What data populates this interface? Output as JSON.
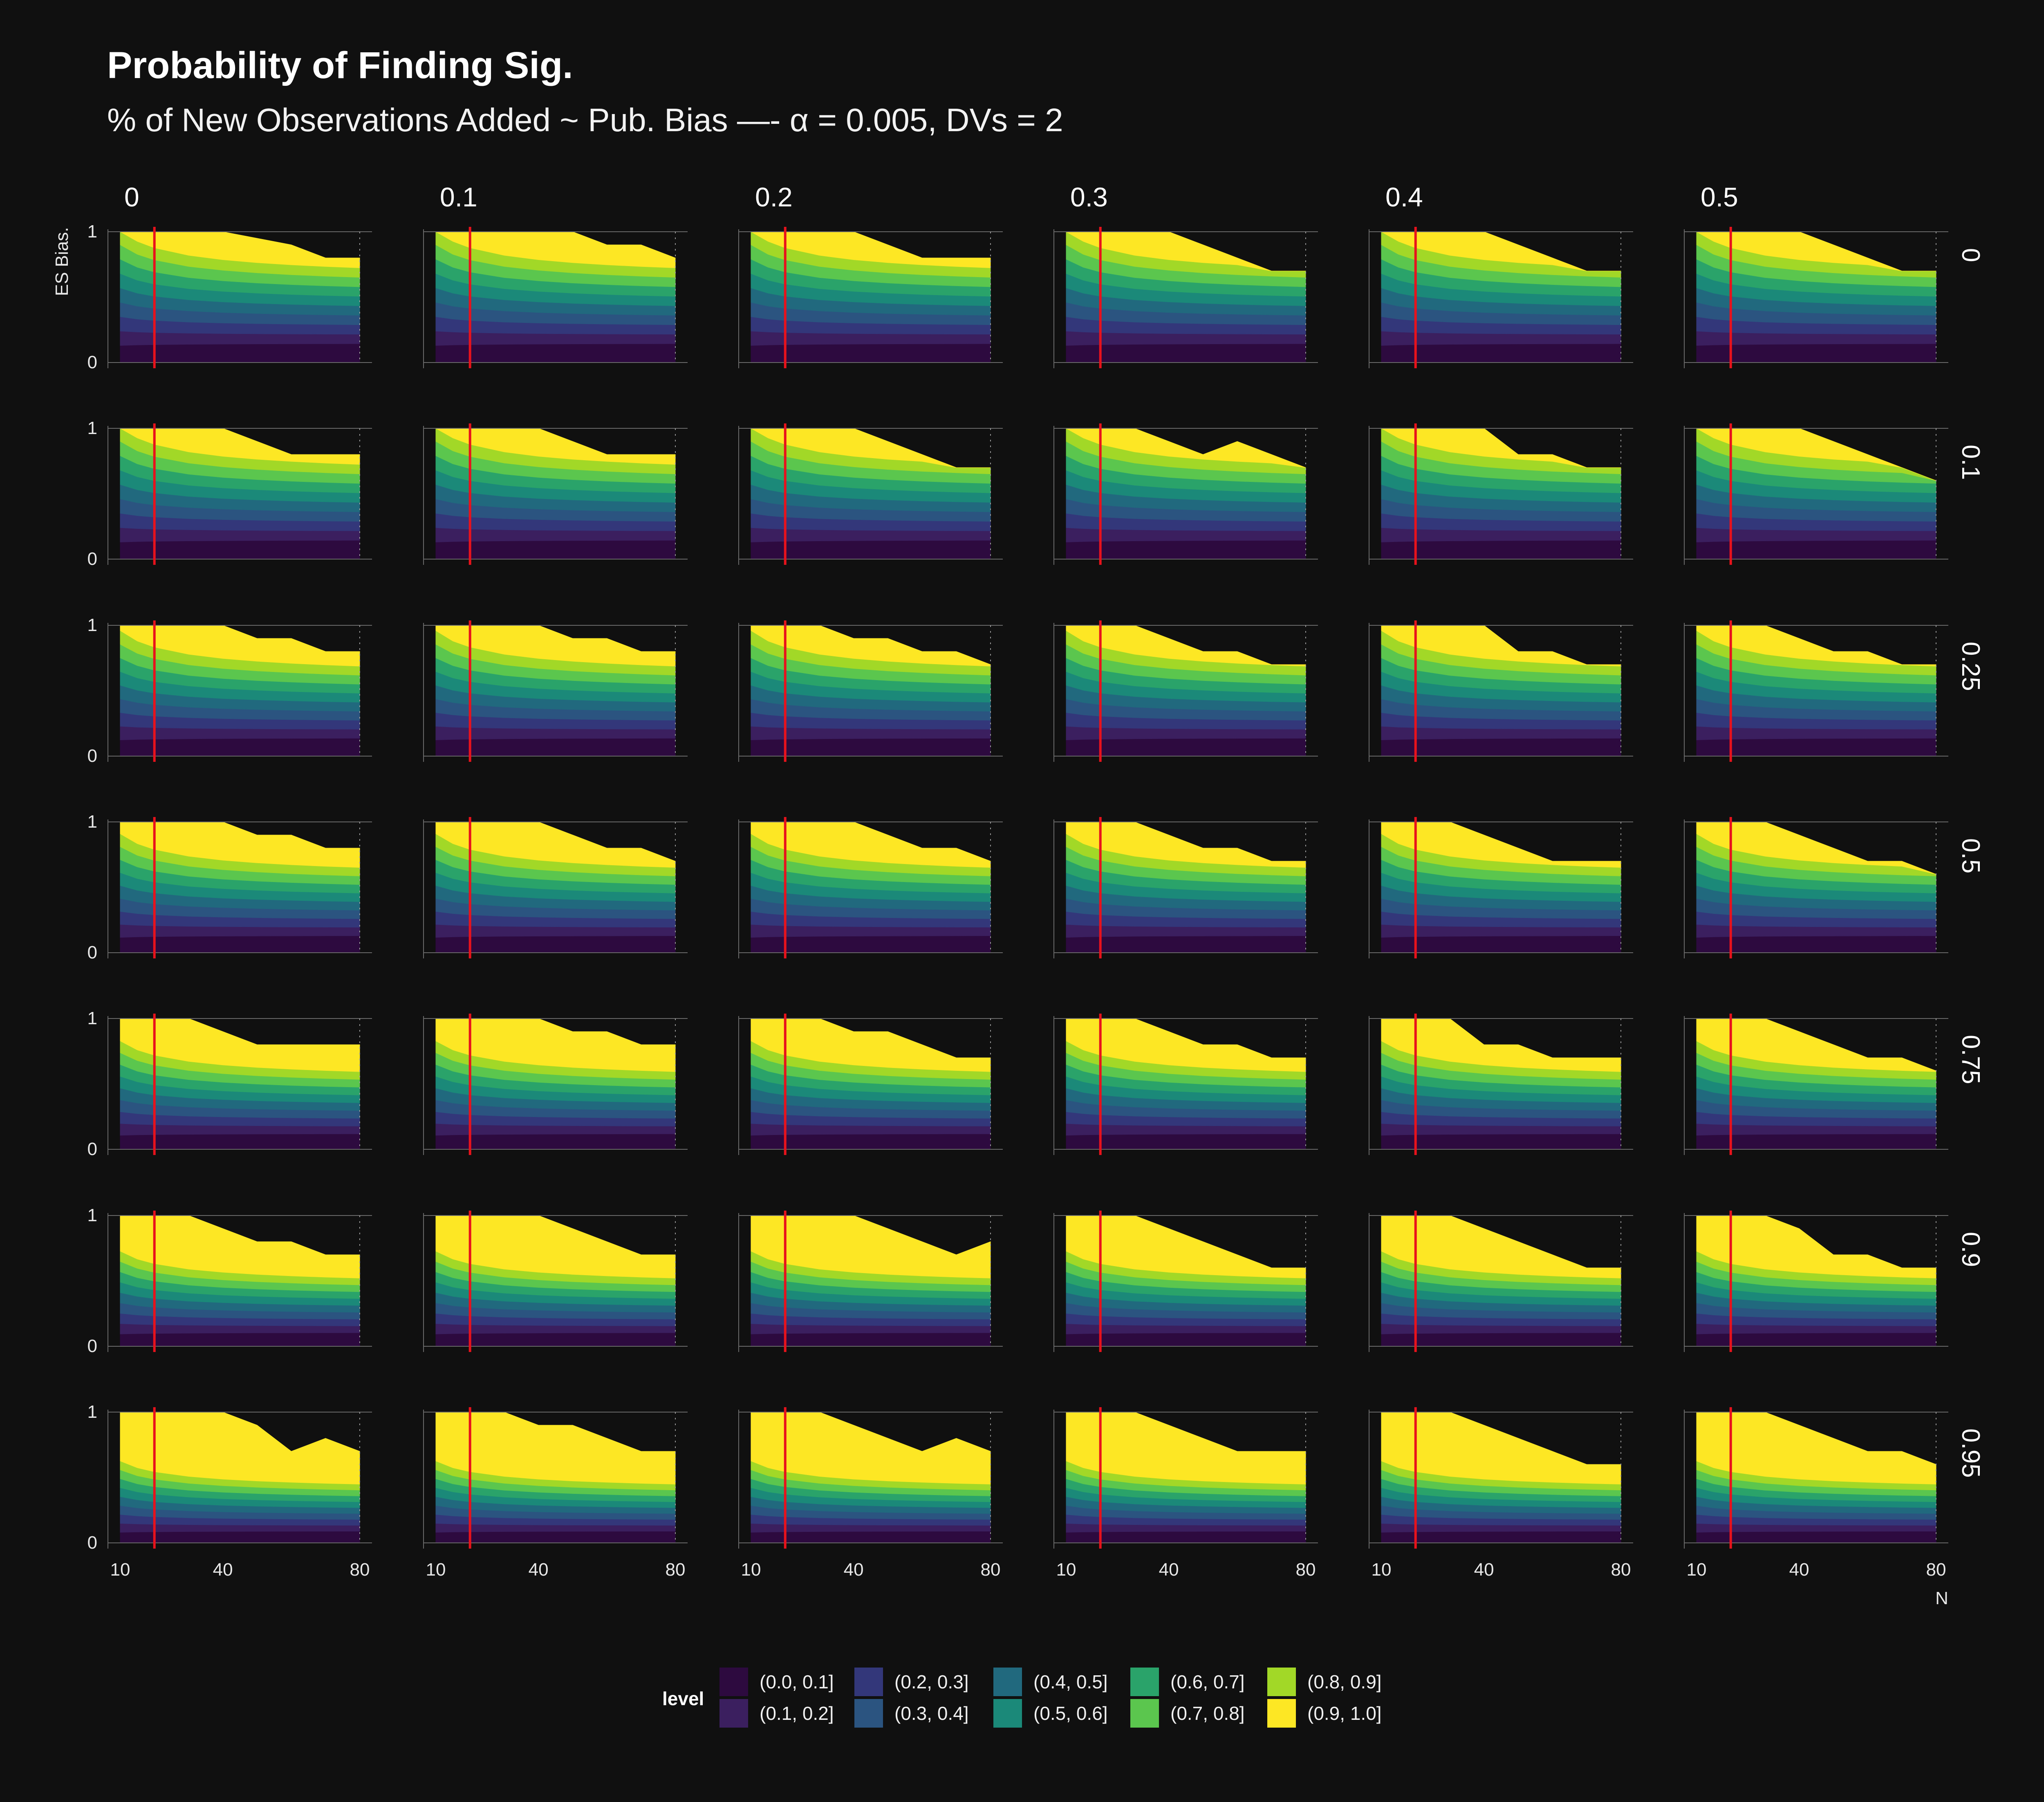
{
  "title": "Probability of Finding Sig.",
  "subtitle": "% of New Observations Added ~ Pub. Bias —- α = 0.005, DVs = 2",
  "chart_data": {
    "type": "area",
    "facet_columns": [
      "0",
      "0.1",
      "0.2",
      "0.3",
      "0.4",
      "0.5"
    ],
    "facet_rows": [
      "0",
      "0.1",
      "0.25",
      "0.5",
      "0.75",
      "0.9",
      "0.95"
    ],
    "xlabel": "N",
    "ylabel": "ES Bias.",
    "x_ticks": [
      "10",
      "40",
      "80"
    ],
    "y_ticks": [
      "0",
      "1"
    ],
    "xlim": [
      10,
      80
    ],
    "ylim": [
      0,
      1
    ],
    "reference_line_x": 20,
    "reference_line_color": "#e8121c",
    "legend": {
      "title": "level",
      "placement": "bottom",
      "items": [
        {
          "label": "(0.0, 0.1]",
          "color": "#2d0a3f"
        },
        {
          "label": "(0.1, 0.2]",
          "color": "#3b1f5f"
        },
        {
          "label": "(0.2, 0.3]",
          "color": "#33377a"
        },
        {
          "label": "(0.3, 0.4]",
          "color": "#2b5480"
        },
        {
          "label": "(0.4, 0.5]",
          "color": "#21697e"
        },
        {
          "label": "(0.5, 0.6]",
          "color": "#1b8979"
        },
        {
          "label": "(0.6, 0.7]",
          "color": "#2aa36a"
        },
        {
          "label": "(0.7, 0.8]",
          "color": "#5bc64e"
        },
        {
          "label": "(0.8, 0.9]",
          "color": "#a2d827"
        },
        {
          "label": "(0.9, 1.0]",
          "color": "#fde724"
        }
      ]
    },
    "x_grid": [
      10,
      15,
      20,
      30,
      40,
      50,
      60,
      70,
      80
    ],
    "row_boundary_scale": [
      1.0,
      1.0,
      0.95,
      0.9,
      0.82,
      0.72,
      0.62
    ],
    "panels_top_edge": [
      [
        [
          1,
          1,
          1,
          1,
          1,
          0.95,
          0.9,
          0.8,
          0.8
        ],
        [
          1,
          1,
          1,
          1,
          1,
          1,
          0.9,
          0.9,
          0.8
        ],
        [
          1,
          1,
          1,
          1,
          1,
          0.9,
          0.8,
          0.8,
          0.8
        ],
        [
          1,
          1,
          1,
          1,
          1,
          0.9,
          0.8,
          0.7,
          0.7
        ],
        [
          1,
          1,
          1,
          1,
          1,
          0.9,
          0.8,
          0.7,
          0.7
        ],
        [
          1,
          1,
          1,
          1,
          1,
          0.9,
          0.8,
          0.7,
          0.7
        ]
      ],
      [
        [
          1,
          1,
          1,
          1,
          1,
          0.9,
          0.8,
          0.8,
          0.8
        ],
        [
          1,
          1,
          1,
          1,
          1,
          0.9,
          0.8,
          0.8,
          0.8
        ],
        [
          1,
          1,
          1,
          1,
          1,
          0.9,
          0.8,
          0.7,
          0.7
        ],
        [
          1,
          1,
          1,
          1,
          0.9,
          0.8,
          0.9,
          0.8,
          0.7
        ],
        [
          1,
          1,
          1,
          1,
          1,
          0.8,
          0.8,
          0.7,
          0.7
        ],
        [
          1,
          1,
          1,
          1,
          1,
          0.9,
          0.8,
          0.7,
          0.6
        ]
      ],
      [
        [
          1,
          1,
          1,
          1,
          1,
          0.9,
          0.9,
          0.8,
          0.8
        ],
        [
          1,
          1,
          1,
          1,
          1,
          0.9,
          0.9,
          0.8,
          0.8
        ],
        [
          1,
          1,
          1,
          1,
          0.9,
          0.9,
          0.8,
          0.8,
          0.7
        ],
        [
          1,
          1,
          1,
          1,
          0.9,
          0.8,
          0.8,
          0.7,
          0.7
        ],
        [
          1,
          1,
          1,
          1,
          1,
          0.8,
          0.8,
          0.7,
          0.7
        ],
        [
          1,
          1,
          1,
          1,
          0.9,
          0.8,
          0.8,
          0.7,
          0.7
        ]
      ],
      [
        [
          1,
          1,
          1,
          1,
          1,
          0.9,
          0.9,
          0.8,
          0.8
        ],
        [
          1,
          1,
          1,
          1,
          1,
          0.9,
          0.8,
          0.8,
          0.7
        ],
        [
          1,
          1,
          1,
          1,
          1,
          0.9,
          0.8,
          0.8,
          0.7
        ],
        [
          1,
          1,
          1,
          1,
          0.9,
          0.8,
          0.8,
          0.7,
          0.7
        ],
        [
          1,
          1,
          1,
          1,
          0.9,
          0.8,
          0.7,
          0.7,
          0.7
        ],
        [
          1,
          1,
          1,
          1,
          0.9,
          0.8,
          0.7,
          0.7,
          0.6
        ]
      ],
      [
        [
          1,
          1,
          1,
          1,
          0.9,
          0.8,
          0.8,
          0.8,
          0.8
        ],
        [
          1,
          1,
          1,
          1,
          1,
          0.9,
          0.9,
          0.8,
          0.8
        ],
        [
          1,
          1,
          1,
          1,
          0.9,
          0.9,
          0.8,
          0.7,
          0.7
        ],
        [
          1,
          1,
          1,
          1,
          0.9,
          0.8,
          0.8,
          0.7,
          0.7
        ],
        [
          1,
          1,
          1,
          1,
          0.8,
          0.8,
          0.7,
          0.7,
          0.7
        ],
        [
          1,
          1,
          1,
          1,
          0.9,
          0.8,
          0.7,
          0.7,
          0.6
        ]
      ],
      [
        [
          1,
          1,
          1,
          1,
          0.9,
          0.8,
          0.8,
          0.7,
          0.7
        ],
        [
          1,
          1,
          1,
          1,
          1,
          0.9,
          0.8,
          0.7,
          0.7
        ],
        [
          1,
          1,
          1,
          1,
          1,
          0.9,
          0.8,
          0.7,
          0.8
        ],
        [
          1,
          1,
          1,
          1,
          0.9,
          0.8,
          0.7,
          0.6,
          0.6
        ],
        [
          1,
          1,
          1,
          1,
          0.9,
          0.8,
          0.7,
          0.6,
          0.6
        ],
        [
          1,
          1,
          1,
          1,
          0.9,
          0.7,
          0.7,
          0.6,
          0.6
        ]
      ],
      [
        [
          1,
          1,
          1,
          1,
          1,
          0.9,
          0.7,
          0.8,
          0.7
        ],
        [
          1,
          1,
          1,
          1,
          0.9,
          0.9,
          0.8,
          0.7,
          0.7
        ],
        [
          1,
          1,
          1,
          1,
          0.9,
          0.8,
          0.7,
          0.8,
          0.7
        ],
        [
          1,
          1,
          1,
          1,
          0.9,
          0.8,
          0.7,
          0.7,
          0.7
        ],
        [
          1,
          1,
          1,
          1,
          0.9,
          0.8,
          0.7,
          0.6,
          0.6
        ],
        [
          1,
          1,
          1,
          1,
          0.9,
          0.8,
          0.7,
          0.7,
          0.6
        ]
      ]
    ]
  }
}
